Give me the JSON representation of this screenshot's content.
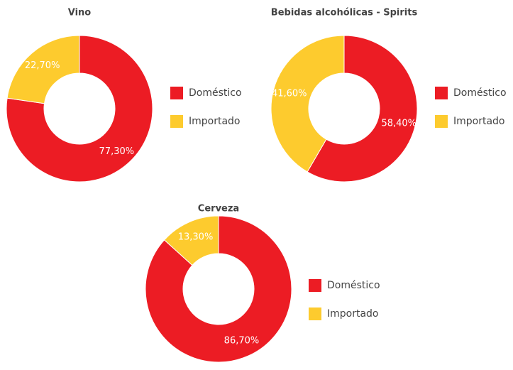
{
  "chart_data": [
    {
      "type": "donut",
      "title": "Vino",
      "categories": [
        "Doméstico",
        "Importado"
      ],
      "values": [
        77.3,
        22.7
      ],
      "value_labels": [
        "77,30%",
        "22,70%"
      ],
      "colors": [
        "#ec1c24",
        "#fdcb2e"
      ]
    },
    {
      "type": "donut",
      "title": "Bebidas alcohólicas - Spirits",
      "categories": [
        "Doméstico",
        "Importado"
      ],
      "values": [
        58.4,
        41.6
      ],
      "value_labels": [
        "58,40%",
        "41,60%"
      ],
      "colors": [
        "#ec1c24",
        "#fdcb2e"
      ]
    },
    {
      "type": "donut",
      "title": "Cerveza",
      "categories": [
        "Doméstico",
        "Importado"
      ],
      "values": [
        86.7,
        13.3
      ],
      "value_labels": [
        "86,70%",
        "13,30%"
      ],
      "colors": [
        "#ec1c24",
        "#fdcb2e"
      ]
    }
  ]
}
